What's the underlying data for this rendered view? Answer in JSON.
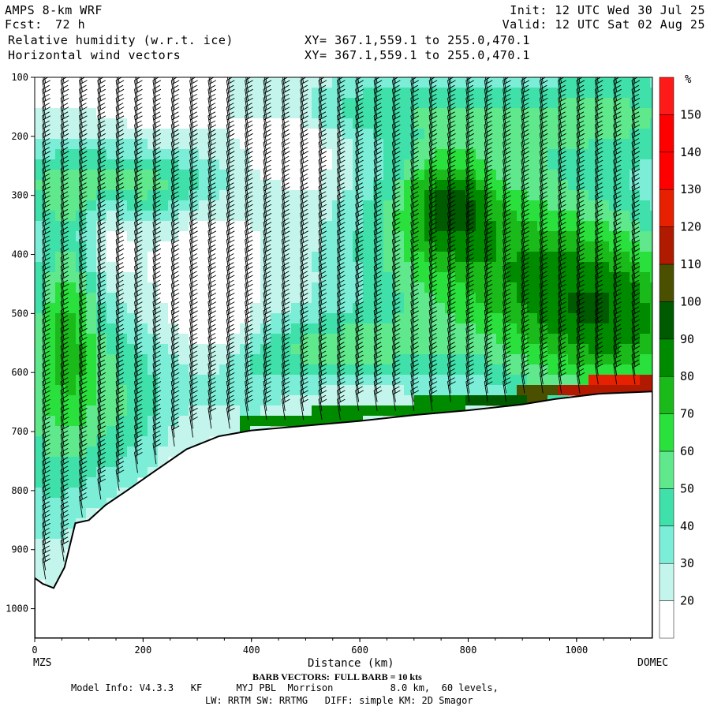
{
  "header": {
    "left_line1": "AMPS 8-km WRF",
    "left_line2_label": "Fcst:",
    "left_line2_value": "72 h",
    "left_line3": "Relative humidity (w.r.t. ice)",
    "left_line4": "Horizontal wind vectors",
    "mid_line3": "XY= 367.1,559.1 to 255.0,470.1",
    "mid_line4": "XY= 367.1,559.1 to 255.0,470.1",
    "right_line1": "Init: 12 UTC Wed 30 Jul 25",
    "right_line2": "Valid: 12 UTC Sat 02 Aug 25"
  },
  "colorbar": {
    "unit": "%",
    "labels": [
      "20",
      "30",
      "40",
      "50",
      "60",
      "70",
      "80",
      "90",
      "100",
      "110",
      "120",
      "130",
      "140",
      "150"
    ],
    "colors": [
      "#ffffff",
      "#c4f5ec",
      "#7ceed8",
      "#40e0ab",
      "#5fe88c",
      "#29e03c",
      "#1aba1a",
      "#008a00",
      "#005a00",
      "#4a5000",
      "#b01a00",
      "#e62000",
      "#ff0000",
      "#ff0000",
      "#ff1a1a"
    ]
  },
  "footer": {
    "barb_note": "BARB VECTORS:  FULL BARB = 10 kts",
    "model_info": "Model Info: V4.3.3   KF      MYJ PBL  Morrison          8.0 km,  60 levels,",
    "model_info2": "LW: RRTM SW: RRTMG   DIFF: simple KM: 2D Smagor"
  },
  "chart_data": {
    "type": "heatmap",
    "title": "Relative humidity (w.r.t. ice)",
    "xlabel": "Distance (km)",
    "ylabel": "",
    "x_ticks": [
      "0",
      "200",
      "400",
      "600",
      "800",
      "1000"
    ],
    "y_ticks": [
      "100",
      "200",
      "300",
      "400",
      "500",
      "600",
      "700",
      "800",
      "900",
      "1000"
    ],
    "xlim": [
      0,
      1140
    ],
    "ylim_pressure_hpa": [
      1050,
      100
    ],
    "x_endpoint_labels": [
      "MZS",
      "DOMEC"
    ],
    "units": "%",
    "colorbar_levels": [
      20,
      30,
      40,
      50,
      60,
      70,
      80,
      90,
      100,
      110,
      120,
      130,
      140,
      150
    ],
    "terrain_pressure_hpa": [
      {
        "x": 0,
        "p": 948
      },
      {
        "x": 15,
        "p": 958
      },
      {
        "x": 35,
        "p": 965
      },
      {
        "x": 55,
        "p": 930
      },
      {
        "x": 75,
        "p": 855
      },
      {
        "x": 100,
        "p": 850
      },
      {
        "x": 130,
        "p": 825
      },
      {
        "x": 170,
        "p": 800
      },
      {
        "x": 220,
        "p": 768
      },
      {
        "x": 280,
        "p": 730
      },
      {
        "x": 340,
        "p": 708
      },
      {
        "x": 400,
        "p": 698
      },
      {
        "x": 500,
        "p": 690
      },
      {
        "x": 600,
        "p": 682
      },
      {
        "x": 700,
        "p": 672
      },
      {
        "x": 800,
        "p": 664
      },
      {
        "x": 900,
        "p": 654
      },
      {
        "x": 960,
        "p": 645
      },
      {
        "x": 1040,
        "p": 636
      },
      {
        "x": 1140,
        "p": 632
      }
    ],
    "overlay": "Horizontal wind vectors (barbs)"
  }
}
